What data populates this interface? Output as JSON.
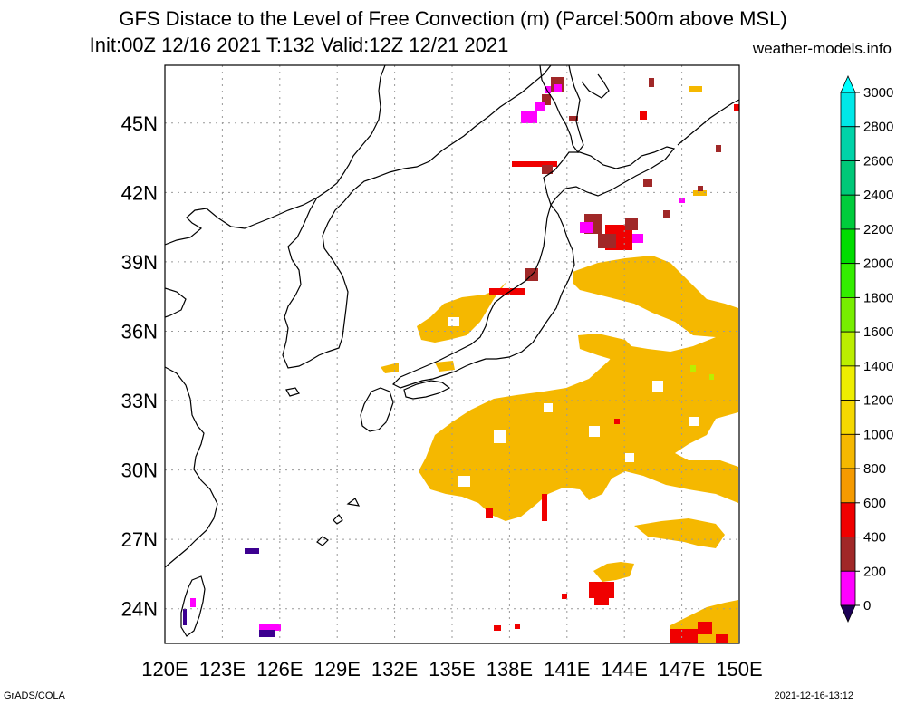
{
  "title": {
    "line1": "GFS Distace to the Level of Free Convection (m) (Parcel:500m above MSL)",
    "line2": "Init:00Z 12/16 2021 T:132 Valid:12Z 12/21 2021",
    "site": "weather-models.info"
  },
  "axes": {
    "lon_labels": [
      "120E",
      "123E",
      "126E",
      "129E",
      "132E",
      "135E",
      "138E",
      "141E",
      "144E",
      "147E",
      "150E"
    ],
    "lat_labels": [
      "45N",
      "42N",
      "39N",
      "36N",
      "33N",
      "30N",
      "27N",
      "24N"
    ],
    "lon_range": [
      120,
      150
    ],
    "lat_range": [
      22.5,
      47.5
    ],
    "grid": "dotted"
  },
  "colorbar": {
    "labels": [
      "3000",
      "2800",
      "2600",
      "2400",
      "2200",
      "2000",
      "1800",
      "1600",
      "1400",
      "1200",
      "1000",
      "800",
      "600",
      "400",
      "200",
      "0"
    ],
    "colors": [
      "#00e8e8",
      "#00d3a8",
      "#00c878",
      "#00cc3c",
      "#00dd00",
      "#33ee00",
      "#77ee00",
      "#bbee00",
      "#eeee00",
      "#f5d800",
      "#f5b800",
      "#f59a00",
      "#f00000",
      "#a02828",
      "#ff00ff",
      "#3c0090"
    ],
    "top_arrow_color": "#00ffff",
    "bottom_arrow_color": "#1c0055"
  },
  "footer": {
    "left": "GrADS/COLA",
    "right": "2021-12-16-13:12"
  }
}
